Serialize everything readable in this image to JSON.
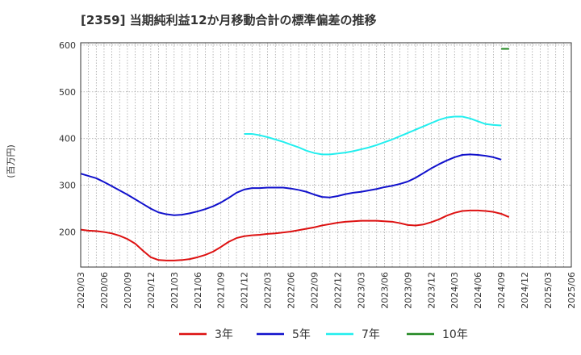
{
  "chart_data": {
    "type": "line",
    "title": "[2359]  当期純利益12か月移動合計の標準偏差の推移",
    "ylabel": "(百万円)",
    "xlabel": "",
    "ylim": [
      125,
      605
    ],
    "yticks": [
      200,
      300,
      400,
      500,
      600
    ],
    "x_tick_labels": [
      "2020/03",
      "2020/06",
      "2020/09",
      "2020/12",
      "2021/03",
      "2021/06",
      "2021/09",
      "2021/12",
      "2022/03",
      "2022/06",
      "2022/09",
      "2022/12",
      "2023/03",
      "2023/06",
      "2023/09",
      "2023/12",
      "2024/03",
      "2024/06",
      "2024/09",
      "2024/12",
      "2025/03",
      "2025/06"
    ],
    "x_start": "2020/03",
    "grid": true,
    "legend_position": "bottom",
    "series": [
      {
        "name": "3年",
        "color": "#dd1111",
        "start_index": 0,
        "values": [
          205,
          203,
          202,
          200,
          197,
          192,
          185,
          175,
          160,
          146,
          140,
          139,
          139,
          140,
          142,
          146,
          151,
          158,
          168,
          179,
          187,
          191,
          193,
          194,
          196,
          197,
          199,
          201,
          204,
          207,
          210,
          214,
          217,
          220,
          222,
          223,
          224,
          224,
          224,
          223,
          222,
          219,
          215,
          214,
          216,
          221,
          227,
          235,
          241,
          245,
          246,
          246,
          245,
          243,
          239,
          232
        ]
      },
      {
        "name": "5年",
        "color": "#1111cc",
        "start_index": 0,
        "values": [
          325,
          320,
          315,
          307,
          298,
          289,
          280,
          270,
          260,
          250,
          242,
          238,
          236,
          237,
          240,
          244,
          249,
          255,
          263,
          273,
          284,
          291,
          294,
          294,
          295,
          295,
          295,
          293,
          290,
          286,
          280,
          275,
          274,
          277,
          281,
          284,
          286,
          289,
          292,
          296,
          299,
          303,
          308,
          316,
          326,
          336,
          345,
          353,
          360,
          365,
          366,
          365,
          363,
          360,
          355
        ]
      },
      {
        "name": "7年",
        "color": "#22eeee",
        "start_index": 21,
        "values": [
          410,
          410,
          407,
          403,
          398,
          393,
          387,
          381,
          374,
          369,
          366,
          366,
          368,
          370,
          373,
          377,
          381,
          386,
          392,
          398,
          405,
          412,
          419,
          426,
          433,
          440,
          445,
          447,
          447,
          443,
          437,
          431,
          429,
          428
        ]
      },
      {
        "name": "10年",
        "color": "#228822",
        "start_index": 54,
        "values": [
          592,
          592
        ]
      }
    ]
  }
}
